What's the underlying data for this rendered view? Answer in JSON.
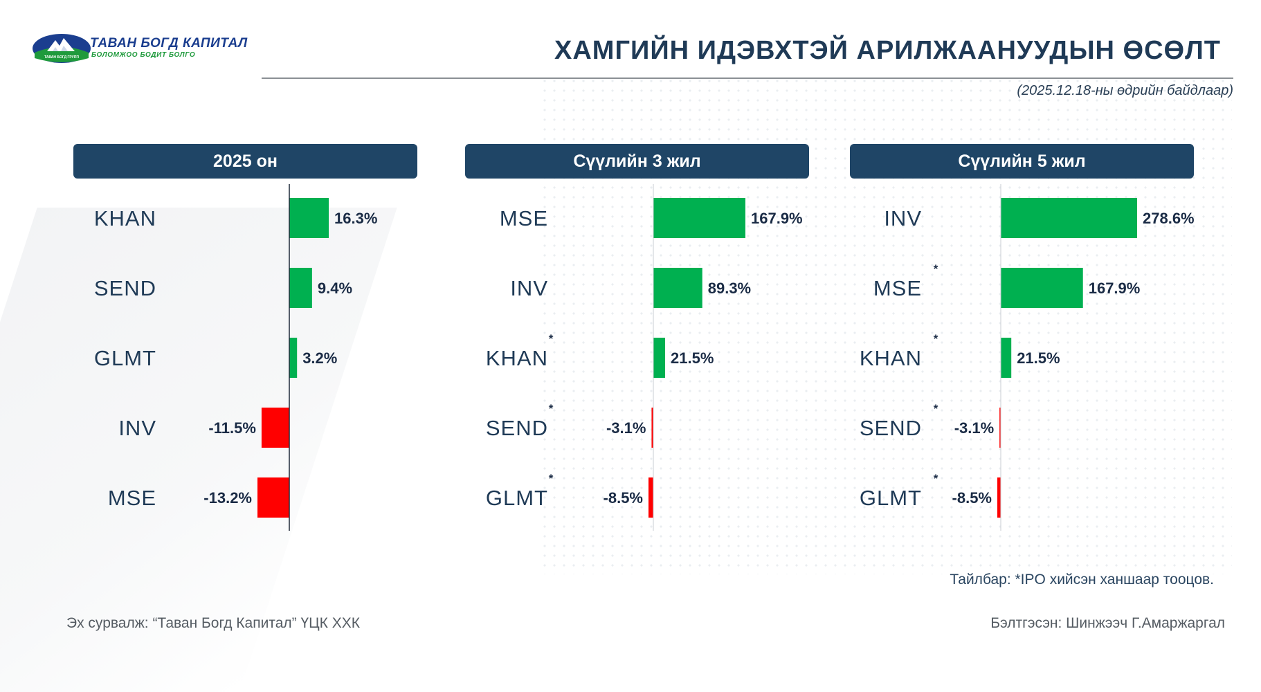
{
  "logo": {
    "name": "ТАВАН БОГД КАПИТАЛ",
    "slogan": "БОЛОМЖОО БОДИТ БОЛГО",
    "mark_text": "ТАВАН БОГД ГРУПП"
  },
  "header": {
    "title": "ХАМГИЙН ИДЭВХТЭЙ АРИЛЖААНУУДЫН ӨСӨЛТ",
    "subtitle": "(2025.12.18-ны өдрийн байдлаар)"
  },
  "colors": {
    "positive": "#00b050",
    "negative": "#ff0000",
    "header_bg": "#1f4566",
    "text": "#1f3a56"
  },
  "chart_data": [
    {
      "type": "bar",
      "orientation": "horizontal",
      "title": "2025 он",
      "categories": [
        "KHAN",
        "SEND",
        "GLMT",
        "INV",
        "MSE"
      ],
      "values": [
        16.3,
        9.4,
        3.2,
        -11.5,
        -13.2
      ],
      "labels": [
        "16.3%",
        "9.4%",
        "3.2%",
        "-11.5%",
        "-13.2%"
      ],
      "ipo_marked": [
        false,
        false,
        false,
        false,
        false
      ],
      "xlim": [
        -13.2,
        16.3
      ]
    },
    {
      "type": "bar",
      "orientation": "horizontal",
      "title": "Сүүлийн 3 жил",
      "categories": [
        "MSE",
        "INV",
        "KHAN",
        "SEND",
        "GLMT"
      ],
      "values": [
        167.9,
        89.3,
        21.5,
        -3.1,
        -8.5
      ],
      "labels": [
        "167.9%",
        "89.3%",
        "21.5%",
        "-3.1%",
        "-8.5%"
      ],
      "ipo_marked": [
        false,
        false,
        true,
        true,
        true
      ],
      "xlim": [
        -8.5,
        167.9
      ]
    },
    {
      "type": "bar",
      "orientation": "horizontal",
      "title": "Сүүлийн 5 жил",
      "categories": [
        "INV",
        "MSE",
        "KHAN",
        "SEND",
        "GLMT"
      ],
      "values": [
        278.6,
        167.9,
        21.5,
        -3.1,
        -8.5
      ],
      "labels": [
        "278.6%",
        "167.9%",
        "21.5%",
        "-3.1%",
        "-8.5%"
      ],
      "ipo_marked": [
        false,
        true,
        true,
        true,
        true
      ],
      "xlim": [
        -8.5,
        278.6
      ]
    }
  ],
  "footer": {
    "note": "Тайлбар: *IPO хийсэн ханшаар тооцов.",
    "source": "Эх сурвалж: “Таван Богд Капитал” ҮЦК ХХК",
    "author": "Бэлтгэсэн: Шинжээч Г.Амаржаргал"
  }
}
